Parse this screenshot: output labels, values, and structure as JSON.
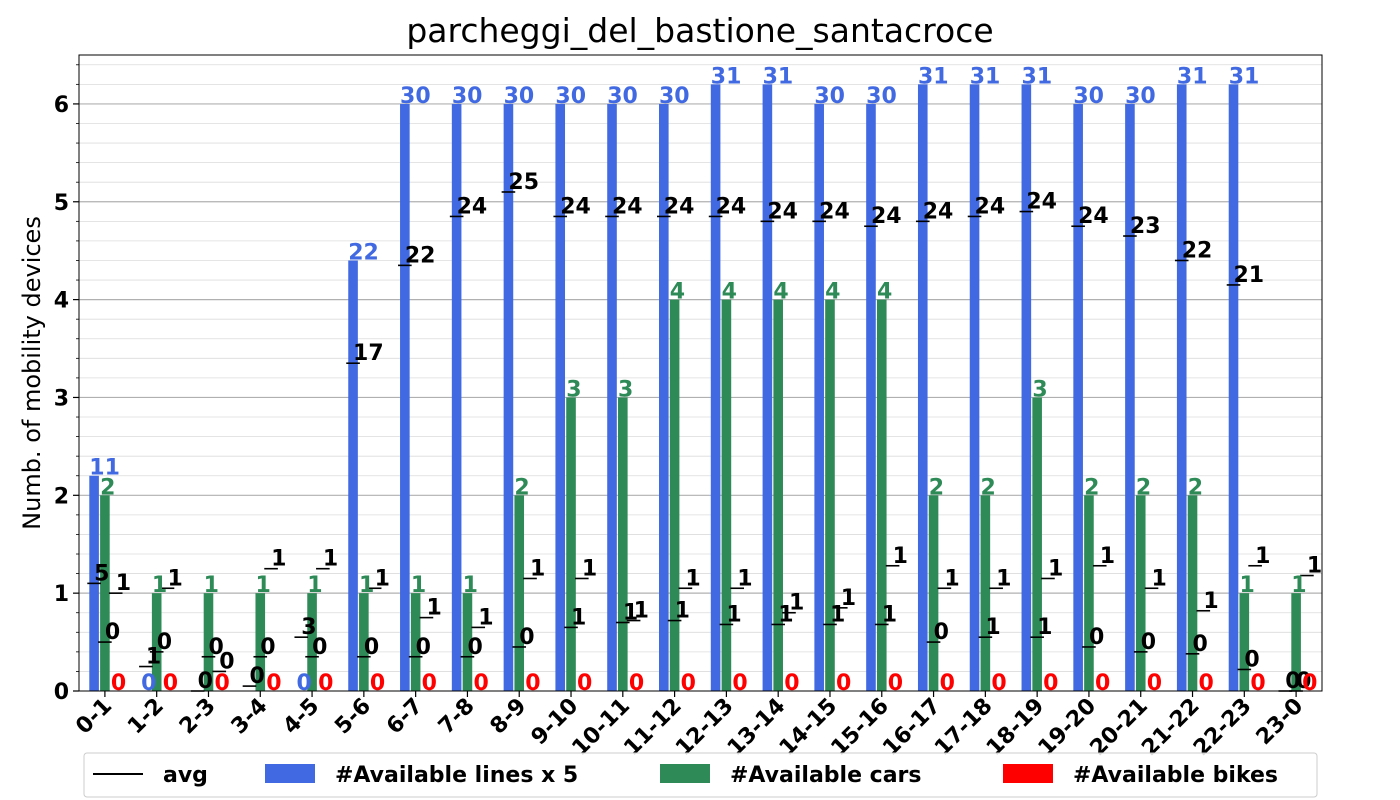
{
  "chart_data": {
    "type": "bar",
    "title": "parcheggi_del_bastione_santacroce",
    "ylabel": "Numb. of mobility devices",
    "xlabel": "",
    "ylim": [
      0,
      6.5
    ],
    "yticks": [
      "0",
      "1",
      "2",
      "3",
      "4",
      "5",
      "6"
    ],
    "grid": true,
    "legend_position": "bottom",
    "categories": [
      "0-1",
      "1-2",
      "2-3",
      "3-4",
      "4-5",
      "5-6",
      "6-7",
      "7-8",
      "8-9",
      "9-10",
      "10-11",
      "11-12",
      "12-13",
      "13-14",
      "14-15",
      "15-16",
      "16-17",
      "17-18",
      "18-19",
      "19-20",
      "20-21",
      "21-22",
      "22-23",
      "23-0"
    ],
    "series": [
      {
        "name": "#Available lines x 5",
        "color": "#4169e1",
        "values": [
          2.2,
          0,
          0,
          0,
          0,
          4.4,
          6.0,
          6.0,
          6.0,
          6.0,
          6.0,
          6.0,
          6.2,
          6.2,
          6.0,
          6.0,
          6.2,
          6.2,
          6.2,
          6.0,
          6.0,
          6.2,
          6.2,
          0
        ],
        "labels": [
          "11",
          "0",
          "",
          "",
          "0",
          "22",
          "30",
          "30",
          "30",
          "30",
          "30",
          "30",
          "31",
          "31",
          "30",
          "30",
          "31",
          "31",
          "31",
          "30",
          "30",
          "31",
          "31",
          ""
        ],
        "avg": [
          1.1,
          0.25,
          0,
          0.05,
          0.55,
          3.35,
          4.35,
          4.85,
          5.1,
          4.85,
          4.85,
          4.85,
          4.85,
          4.8,
          4.8,
          4.75,
          4.8,
          4.85,
          4.9,
          4.75,
          4.65,
          4.4,
          4.15,
          0
        ],
        "avg_labels": [
          "5",
          "1",
          "0",
          "0",
          "3",
          "17",
          "22",
          "24",
          "25",
          "24",
          "24",
          "24",
          "24",
          "24",
          "24",
          "24",
          "24",
          "24",
          "24",
          "24",
          "23",
          "22",
          "21",
          "0"
        ]
      },
      {
        "name": "#Available cars",
        "color": "#2e8b57",
        "values": [
          2,
          1,
          1,
          1,
          1,
          1,
          1,
          1,
          2,
          3,
          3,
          4,
          4,
          4,
          4,
          4,
          2,
          2,
          3,
          2,
          2,
          2,
          1,
          1
        ],
        "labels": [
          "2",
          "1",
          "1",
          "1",
          "1",
          "1",
          "1",
          "1",
          "2",
          "3",
          "3",
          "4",
          "4",
          "4",
          "4",
          "4",
          "2",
          "2",
          "3",
          "2",
          "2",
          "2",
          "1",
          "1"
        ],
        "avg": [
          0.5,
          0.4,
          0.35,
          0.35,
          0.35,
          0.35,
          0.35,
          0.35,
          0.45,
          0.65,
          0.7,
          0.72,
          0.68,
          0.68,
          0.68,
          0.68,
          0.5,
          0.55,
          0.55,
          0.45,
          0.4,
          0.38,
          0.22,
          0
        ],
        "avg_labels": [
          "0",
          "0",
          "0",
          "0",
          "0",
          "0",
          "0",
          "0",
          "0",
          "1",
          "1",
          "1",
          "1",
          "1",
          "1",
          "1",
          "0",
          "1",
          "1",
          "0",
          "0",
          "0",
          "0",
          "0"
        ]
      },
      {
        "name": "#Available bikes",
        "color": "#ff0000",
        "values": [
          0,
          0,
          0,
          0,
          0,
          0,
          0,
          0,
          0,
          0,
          0,
          0,
          0,
          0,
          0,
          0,
          0,
          0,
          0,
          0,
          0,
          0,
          0,
          0
        ],
        "labels": [
          "0",
          "0",
          "0",
          "0",
          "0",
          "0",
          "0",
          "0",
          "0",
          "0",
          "0",
          "0",
          "0",
          "0",
          "0",
          "0",
          "0",
          "0",
          "0",
          "0",
          "0",
          "0",
          "0",
          "0"
        ],
        "avg": [
          1.0,
          1.05,
          0.2,
          1.25,
          1.25,
          1.05,
          0.75,
          0.65,
          1.15,
          1.15,
          0.72,
          1.05,
          1.05,
          0.8,
          0.85,
          1.28,
          1.05,
          1.05,
          1.15,
          1.28,
          1.05,
          0.82,
          1.28,
          1.18
        ],
        "avg_labels": [
          "1",
          "1",
          "0",
          "1",
          "1",
          "1",
          "1",
          "1",
          "1",
          "1",
          "1",
          "1",
          "1",
          "1",
          "1",
          "1",
          "1",
          "1",
          "1",
          "1",
          "1",
          "1",
          "1",
          "1"
        ]
      }
    ],
    "legend": [
      {
        "label": "avg",
        "kind": "line",
        "color": "#000000"
      },
      {
        "label": "#Available lines x 5",
        "kind": "patch",
        "color": "#4169e1"
      },
      {
        "label": "#Available cars",
        "kind": "patch",
        "color": "#2e8b57"
      },
      {
        "label": "#Available bikes",
        "kind": "patch",
        "color": "#ff0000"
      }
    ]
  }
}
